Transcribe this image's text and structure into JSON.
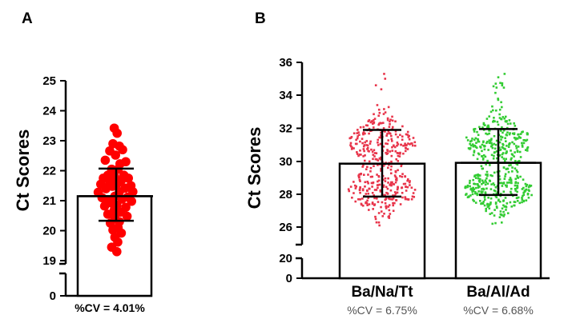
{
  "chart_data": [
    {
      "panel": "A",
      "type": "bar",
      "ylabel": "Ct Scores",
      "yticks": [
        0,
        19,
        20,
        21,
        22,
        23,
        24,
        25
      ],
      "ylim": [
        19,
        25
      ],
      "axis_break": true,
      "categories": [
        ""
      ],
      "bar_mean": [
        21.15
      ],
      "error": [
        [
          20.33,
          22.07
        ]
      ],
      "point_color": "#ff0000",
      "cv_label": "%CV = 4.01%",
      "points": [
        {
          "x": -0.06,
          "y": 23.42
        },
        {
          "x": 0.03,
          "y": 23.25
        },
        {
          "x": -0.1,
          "y": 22.9
        },
        {
          "x": 0.1,
          "y": 22.82
        },
        {
          "x": -0.2,
          "y": 22.66
        },
        {
          "x": 0.2,
          "y": 22.7
        },
        {
          "x": -0.02,
          "y": 22.52
        },
        {
          "x": 0.3,
          "y": 22.3
        },
        {
          "x": -0.34,
          "y": 22.35
        },
        {
          "x": 0.12,
          "y": 22.23
        },
        {
          "x": -0.14,
          "y": 22.05
        },
        {
          "x": 0.06,
          "y": 22.05
        },
        {
          "x": -0.26,
          "y": 21.85
        },
        {
          "x": 0.24,
          "y": 21.85
        },
        {
          "x": -0.05,
          "y": 21.8
        },
        {
          "x": 0.38,
          "y": 21.75
        },
        {
          "x": -0.4,
          "y": 21.75
        },
        {
          "x": 0.16,
          "y": 21.68
        },
        {
          "x": -0.2,
          "y": 21.6
        },
        {
          "x": 0.04,
          "y": 21.58
        },
        {
          "x": -0.48,
          "y": 21.55
        },
        {
          "x": 0.46,
          "y": 21.5
        },
        {
          "x": -0.12,
          "y": 21.48
        },
        {
          "x": 0.28,
          "y": 21.42
        },
        {
          "x": -0.32,
          "y": 21.4
        },
        {
          "x": 0.52,
          "y": 21.3
        },
        {
          "x": -0.56,
          "y": 21.28
        },
        {
          "x": 0.1,
          "y": 21.3
        },
        {
          "x": -0.04,
          "y": 21.15
        },
        {
          "x": 0.36,
          "y": 21.12
        },
        {
          "x": -0.44,
          "y": 21.1
        },
        {
          "x": 0.18,
          "y": 21.05
        },
        {
          "x": -0.24,
          "y": 21.02
        },
        {
          "x": 0.48,
          "y": 20.98
        },
        {
          "x": -0.14,
          "y": 20.92
        },
        {
          "x": 0.02,
          "y": 20.85
        },
        {
          "x": -0.36,
          "y": 20.82
        },
        {
          "x": 0.3,
          "y": 20.78
        },
        {
          "x": -0.06,
          "y": 20.68
        },
        {
          "x": 0.14,
          "y": 20.62
        },
        {
          "x": -0.26,
          "y": 20.55
        },
        {
          "x": 0.34,
          "y": 20.48
        },
        {
          "x": -0.04,
          "y": 20.42
        },
        {
          "x": 0.1,
          "y": 20.3
        },
        {
          "x": -0.18,
          "y": 20.25
        },
        {
          "x": 0.06,
          "y": 20.1
        },
        {
          "x": -0.1,
          "y": 20.02
        },
        {
          "x": 0.16,
          "y": 19.92
        },
        {
          "x": -0.04,
          "y": 19.78
        },
        {
          "x": 0.05,
          "y": 19.62
        },
        {
          "x": -0.14,
          "y": 19.45
        },
        {
          "x": 0.02,
          "y": 19.3
        }
      ]
    },
    {
      "panel": "B",
      "type": "bar",
      "ylabel": "Ct Scores",
      "yticks": [
        0,
        20,
        26,
        28,
        30,
        32,
        34,
        36
      ],
      "ylim": [
        26,
        36
      ],
      "axis_break": true,
      "categories": [
        "Ba/Na/Tt",
        "Ba/Al/Ad"
      ],
      "bar_mean": [
        29.85,
        29.9
      ],
      "error": [
        [
          27.85,
          31.9
        ],
        [
          27.95,
          31.95
        ]
      ],
      "series_colors": [
        "#e8344a",
        "#33cc33"
      ],
      "y_range": [
        [
          26.1,
          35.3
        ],
        [
          26.2,
          35.3
        ]
      ],
      "n_points": [
        420,
        500
      ],
      "cv_labels": [
        "%CV = 6.75%",
        "%CV = 6.68%"
      ]
    }
  ]
}
